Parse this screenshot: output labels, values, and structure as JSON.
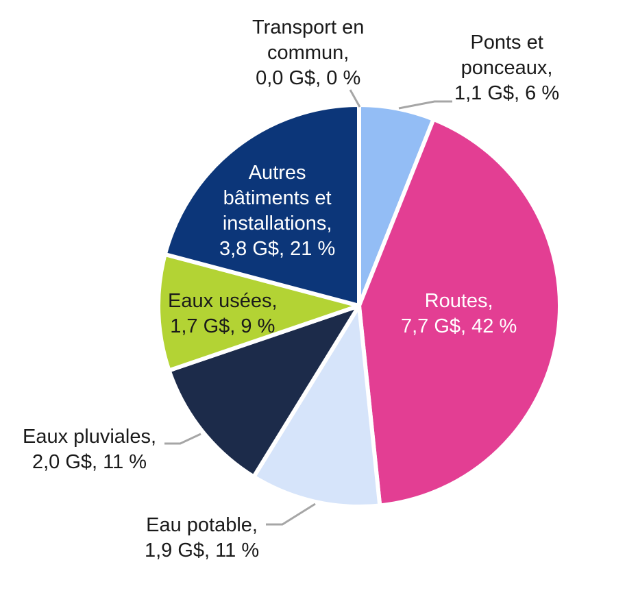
{
  "chart_data": {
    "type": "pie",
    "start_angle_deg": 0,
    "direction": "clockwise",
    "slices": [
      {
        "name": "Transport en commun",
        "value_text": "0,0 G$",
        "value": 0.0,
        "percent": 0,
        "color": "#ffffff",
        "label_lines": [
          "Transport en",
          "commun,",
          "0,0 G$, 0 %"
        ]
      },
      {
        "name": "Ponts et ponceaux",
        "value_text": "1,1 G$",
        "value": 1.1,
        "percent": 6,
        "color": "#93bdf5",
        "label_lines": [
          "Ponts et",
          "ponceaux,",
          "1,1 G$, 6 %"
        ]
      },
      {
        "name": "Routes",
        "value_text": "7,7 G$",
        "value": 7.7,
        "percent": 42,
        "color": "#e33e93",
        "label_lines": [
          "Routes,",
          "7,7 G$, 42 %"
        ]
      },
      {
        "name": "Eau potable",
        "value_text": "1,9 G$",
        "value": 1.9,
        "percent": 11,
        "color": "#d6e4fa",
        "label_lines": [
          "Eau potable,",
          "1,9 G$, 11 %"
        ]
      },
      {
        "name": "Eaux pluviales",
        "value_text": "2,0 G$",
        "value": 2.0,
        "percent": 11,
        "color": "#1c2b4a",
        "label_lines": [
          "Eaux pluviales,",
          "2,0 G$, 11 %"
        ]
      },
      {
        "name": "Eaux usées",
        "value_text": "1,7 G$",
        "value": 1.7,
        "percent": 9,
        "color": "#b3d334",
        "label_lines": [
          "Eaux usées,",
          "1,7 G$, 9 %"
        ]
      },
      {
        "name": "Autres bâtiments et installations",
        "value_text": "3,8 G$",
        "value": 3.8,
        "percent": 21,
        "color": "#0c3679",
        "label_lines": [
          "Autres",
          "bâtiments et",
          "installations,",
          "3,8 G$, 21 %"
        ]
      }
    ]
  }
}
